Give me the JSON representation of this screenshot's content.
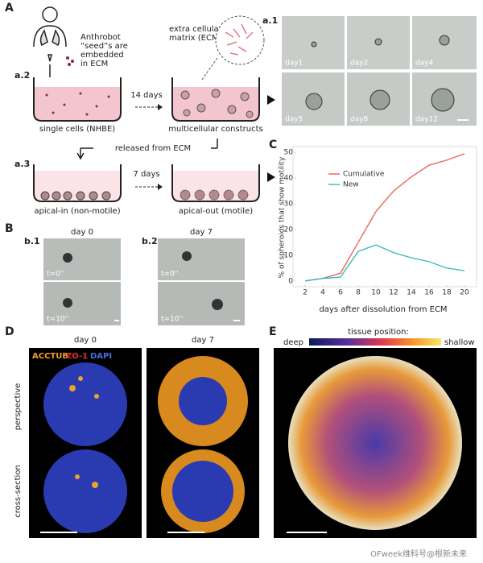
{
  "panel_a": {
    "label": "A",
    "sub_1": "a.1",
    "sub_2": "a.2",
    "sub_3": "a.3",
    "seed_note": [
      "Anthrobot",
      "“seed”s are",
      "embedded",
      "in ECM"
    ],
    "ecm_note": [
      "extra cellular",
      "matrix (ECM)"
    ],
    "step_1": "14 days",
    "dish_1": "single cells (NHBE)",
    "dish_2": "multicellular constructs",
    "timepoints": [
      "day1",
      "day2",
      "day4",
      "day5",
      "day8",
      "day12"
    ],
    "release": "released from ECM",
    "step_2": "7 days",
    "dish_3": "apical-in (non-motile)",
    "dish_4": "apical-out (motile)"
  },
  "panel_b": {
    "label": "B",
    "sub_1": "b.1",
    "sub_2": "b.2",
    "day_1": "day 0",
    "day_2": "day 7",
    "times": [
      "t=0''",
      "t=10''"
    ]
  },
  "chart_data": {
    "type": "line",
    "panel_label": "C",
    "ylabel": "% of spheroids that show motility",
    "xlabel": "days after dissolution from ECM",
    "x": [
      2,
      4,
      6,
      8,
      10,
      12,
      14,
      16,
      18,
      20
    ],
    "series": [
      {
        "name": "Cumulative",
        "color": "#e8685a",
        "values": [
          0,
          1,
          3,
          15,
          27,
          35,
          40.5,
          45,
          47,
          49.5
        ]
      },
      {
        "name": "New",
        "color": "#3dbdb9",
        "values": [
          0,
          1,
          1.5,
          11.5,
          14,
          11,
          9,
          7.5,
          5,
          4
        ]
      }
    ],
    "xlim": [
      1,
      21
    ],
    "xticks": [
      2,
      4,
      6,
      8,
      10,
      12,
      14,
      16,
      18,
      20
    ],
    "ylim": [
      -1,
      51
    ],
    "yticks": [
      0,
      10,
      20,
      30,
      40,
      50
    ],
    "grid": false,
    "legend": "upper left"
  },
  "panel_d": {
    "label": "D",
    "day_1": "day 0",
    "day_2": "day 7",
    "stains": [
      "ACCTUB",
      "ZO-1",
      "DAPI"
    ],
    "views": [
      "perspective",
      "cross-section"
    ]
  },
  "panel_e": {
    "label": "E",
    "colorbar_title": "tissue position:",
    "low": "deep",
    "high": "shallow"
  },
  "watermark": "OFweek维科号@根新未来"
}
